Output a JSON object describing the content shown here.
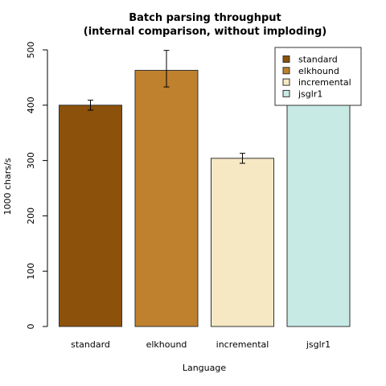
{
  "chart_data": {
    "type": "bar",
    "title_lines": [
      "Batch parsing throughput",
      "(internal comparison, without imploding)"
    ],
    "xlabel": "Language",
    "ylabel": "1000 chars/s",
    "ylim": [
      0,
      500
    ],
    "yticks": [
      0,
      100,
      200,
      300,
      400,
      500
    ],
    "categories": [
      "standard",
      "elkhound",
      "incremental",
      "jsglr1"
    ],
    "values": [
      400,
      463,
      304,
      470
    ],
    "error_low": [
      391,
      433,
      295,
      462
    ],
    "error_high": [
      409,
      499,
      313,
      478
    ],
    "colors": [
      "#8c510a",
      "#bf812d",
      "#f6e8c3",
      "#c7eae5"
    ],
    "legend": {
      "placement": "top-right",
      "entries": [
        "standard",
        "elkhound",
        "incremental",
        "jsglr1"
      ]
    },
    "grid": false
  }
}
